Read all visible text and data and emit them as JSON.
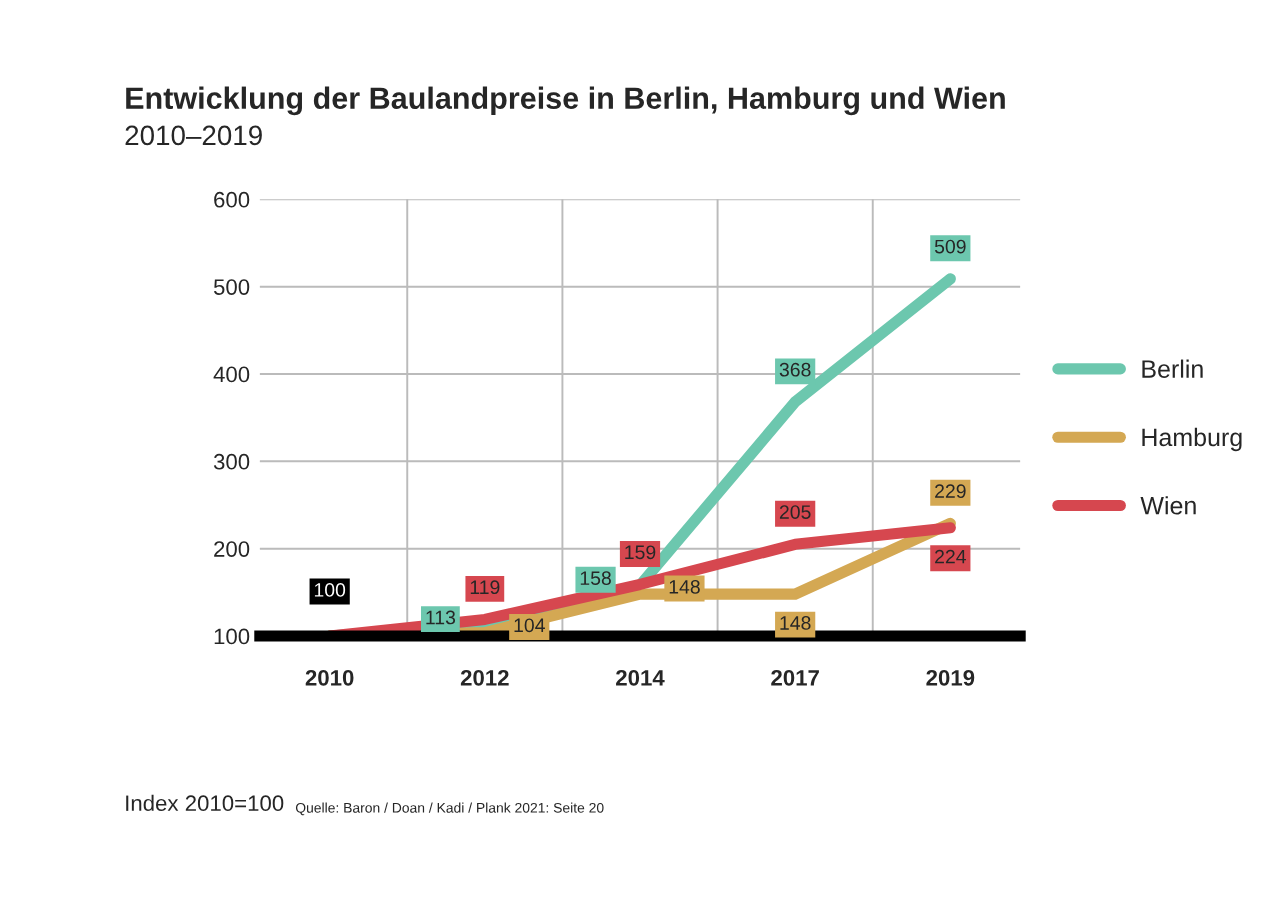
{
  "chart_data": {
    "type": "line",
    "title": "Entwicklung der Baulandpreise in Berlin, Hamburg und Wien",
    "subtitle": "2010–2019",
    "categories": [
      "2010",
      "2012",
      "2014",
      "2017",
      "2019"
    ],
    "series": [
      {
        "name": "Berlin",
        "color": "#6cc7ae",
        "values": [
          100,
          113,
          158,
          368,
          509
        ],
        "value_labels": [
          null,
          "113",
          "158",
          "368",
          "509"
        ]
      },
      {
        "name": "Hamburg",
        "color": "#d4a853",
        "values": [
          100,
          104,
          148,
          148,
          229
        ],
        "value_labels": [
          null,
          "104",
          "148",
          "148",
          "229"
        ]
      },
      {
        "name": "Wien",
        "color": "#d6474f",
        "values": [
          100,
          119,
          159,
          205,
          224
        ],
        "value_labels": [
          null,
          "119",
          "159",
          "205",
          "224"
        ]
      }
    ],
    "ylim": [
      100,
      600
    ],
    "yticks": [
      100,
      200,
      300,
      400,
      500,
      600
    ],
    "grid": true,
    "legend": "right",
    "marker": "none",
    "line_style": "solid",
    "annotations": [
      {
        "text": "100",
        "x": "2010",
        "y": 100
      },
      "Index 2010=100",
      "Quelle: Baron / Doan / Kadi / Plank 2021: Seite 20"
    ]
  }
}
